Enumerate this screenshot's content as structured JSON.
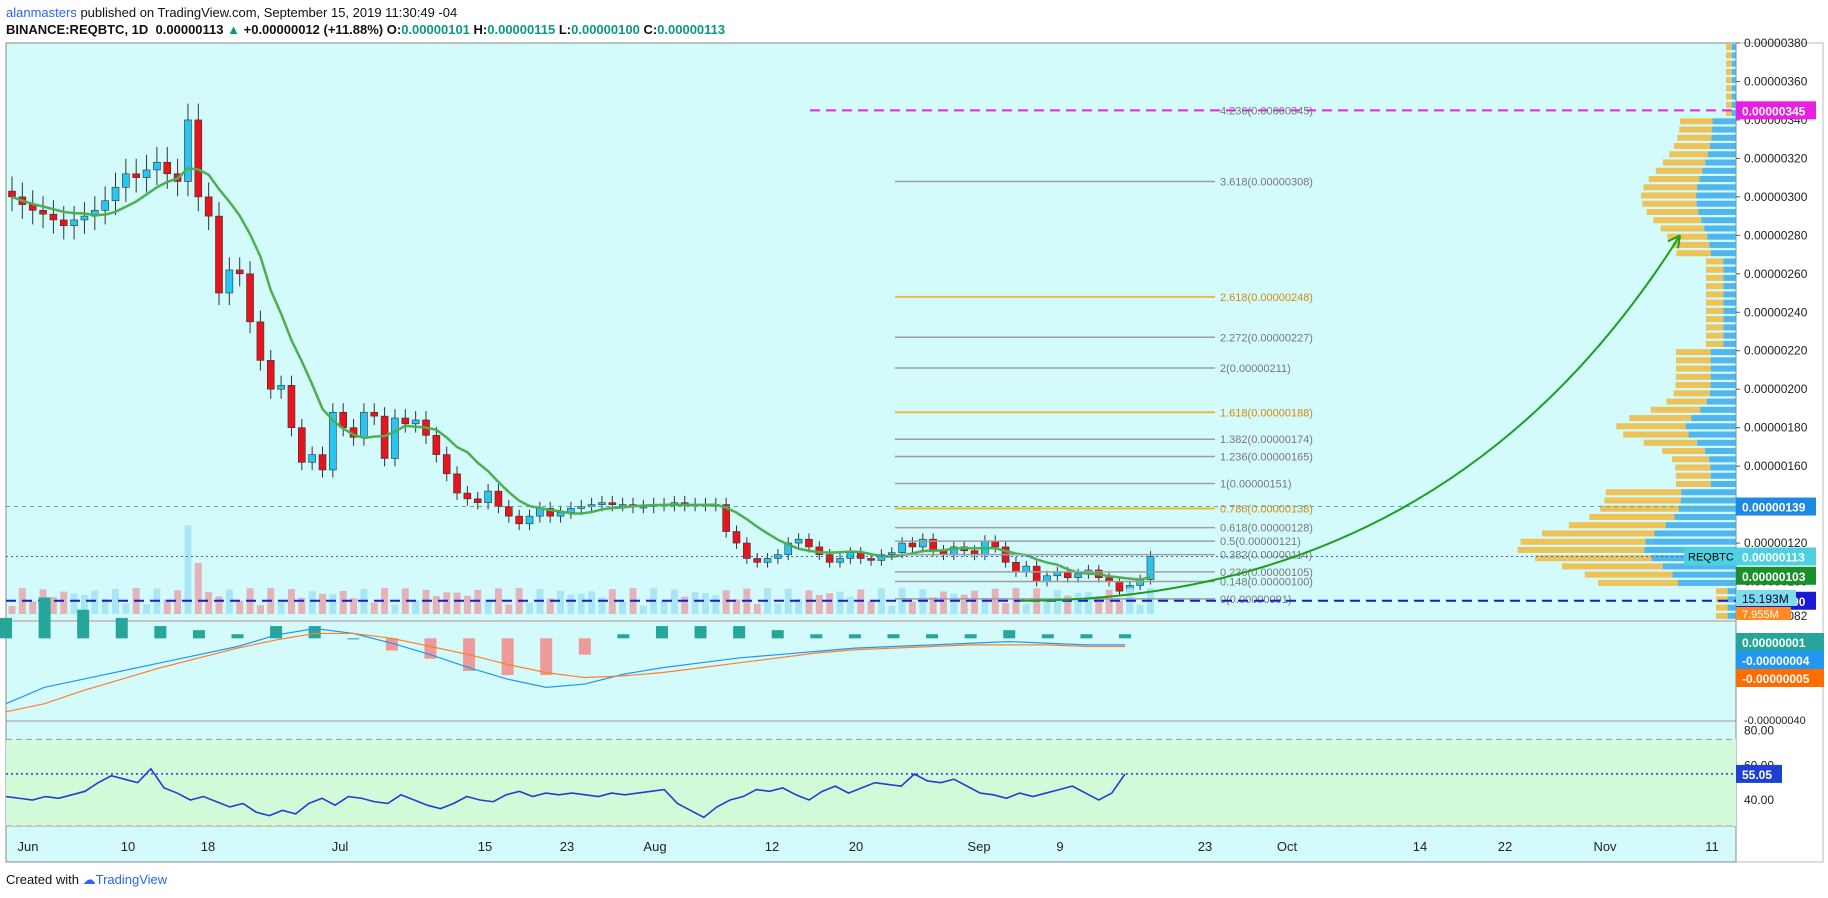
{
  "header": {
    "author": "alanmasters",
    "published": "published on TradingView.com, September 15, 2019 11:30:49 -04",
    "symbol": "BINANCE:REQBTC, 1D",
    "last": "0.00000113",
    "change": "+0.00000012 (+11.88%)",
    "o_label": "O:",
    "o": "0.00000101",
    "h_label": "H:",
    "h": "0.00000115",
    "l_label": "L:",
    "l": "0.00000100",
    "c_label": "C:",
    "c": "0.00000113"
  },
  "footer": {
    "prefix": "Created with",
    "brand": "TradingView"
  },
  "colors": {
    "background": "#d4fbfc",
    "up": "#26c6f0",
    "down": "#e8141c",
    "ma": "#4caf50",
    "fib_gray": "#9e9e9e",
    "fib_gold": "#f0b73c",
    "magenta": "#e91ee3",
    "support": "#1a1ad6",
    "arrow": "#1e9e1e",
    "macd": "#2196f3",
    "signal": "#ff7f27",
    "rsi": "#1e40d0",
    "rsi_band": "#d3fad8"
  },
  "chart_data": {
    "type": "candlestick",
    "symbol": "REQBTC",
    "timeframe": "1D",
    "price_axis": {
      "min": 8e-07,
      "max": 3.8e-06,
      "ticks": [
        "0.00000380",
        "0.00000360",
        "0.00000340",
        "0.00000320",
        "0.00000300",
        "0.00000280",
        "0.00000260",
        "0.00000240",
        "0.00000220",
        "0.00000200",
        "0.00000180",
        "0.00000160",
        "0.00000140",
        "0.00000120",
        "0.00000100",
        "0.00000082"
      ]
    },
    "x_axis": {
      "labels": [
        "Jun",
        "10",
        "18",
        "Jul",
        "15",
        "23",
        "Aug",
        "12",
        "20",
        "Sep",
        "9",
        "23",
        "Oct",
        "14",
        "22",
        "Nov",
        "11"
      ]
    },
    "close": [
      3e-06,
      2.96e-06,
      2.93e-06,
      2.91e-06,
      2.88e-06,
      2.85e-06,
      2.88e-06,
      2.9e-06,
      2.93e-06,
      2.98e-06,
      3.05e-06,
      3.12e-06,
      3.1e-06,
      3.14e-06,
      3.18e-06,
      3.12e-06,
      3.08e-06,
      3.4e-06,
      3e-06,
      2.9e-06,
      2.5e-06,
      2.62e-06,
      2.6e-06,
      2.35e-06,
      2.15e-06,
      2e-06,
      2.02e-06,
      1.8e-06,
      1.62e-06,
      1.66e-06,
      1.58e-06,
      1.88e-06,
      1.8e-06,
      1.75e-06,
      1.88e-06,
      1.86e-06,
      1.64e-06,
      1.85e-06,
      1.82e-06,
      1.84e-06,
      1.76e-06,
      1.66e-06,
      1.56e-06,
      1.46e-06,
      1.43e-06,
      1.41e-06,
      1.47e-06,
      1.39e-06,
      1.34e-06,
      1.3e-06,
      1.34e-06,
      1.38e-06,
      1.34e-06,
      1.36e-06,
      1.38e-06,
      1.39e-06,
      1.4e-06,
      1.41e-06,
      1.4e-06,
      1.4e-06,
      1.39e-06,
      1.39e-06,
      1.4e-06,
      1.4e-06,
      1.41e-06,
      1.4e-06,
      1.4e-06,
      1.4e-06,
      1.4e-06,
      1.26e-06,
      1.2e-06,
      1.12e-06,
      1.1e-06,
      1.12e-06,
      1.14e-06,
      1.2e-06,
      1.22e-06,
      1.18e-06,
      1.14e-06,
      1.1e-06,
      1.12e-06,
      1.15e-06,
      1.12e-06,
      1.11e-06,
      1.14e-06,
      1.15e-06,
      1.2e-06,
      1.18e-06,
      1.22e-06,
      1.16e-06,
      1.14e-06,
      1.18e-06,
      1.16e-06,
      1.14e-06,
      1.21e-06,
      1.18e-06,
      1.1e-06,
      1.05e-06,
      1.08e-06,
      1e-06,
      1.03e-06,
      1.05e-06,
      1.02e-06,
      1.04e-06,
      1.06e-06,
      1.02e-06,
      1e-06,
      9.5e-07,
      9.8e-07,
      1.01e-06,
      1.13e-06
    ],
    "ma_line": "green moving average",
    "fibonacci": [
      {
        "label": "4.236(0.00000345)",
        "value": 3.45e-06
      },
      {
        "label": "3.618(0.00000308)",
        "value": 3.08e-06
      },
      {
        "label": "2.618(0.00000248)",
        "value": 2.48e-06
      },
      {
        "label": "2.272(0.00000227)",
        "value": 2.27e-06
      },
      {
        "label": "2(0.00000211)",
        "value": 2.11e-06
      },
      {
        "label": "1.618(0.00000188)",
        "value": 1.88e-06
      },
      {
        "label": "1.382(0.00000174)",
        "value": 1.74e-06
      },
      {
        "label": "1.236(0.00000165)",
        "value": 1.65e-06
      },
      {
        "label": "1(0.00000151)",
        "value": 1.51e-06
      },
      {
        "label": "0.786(0.00000138)",
        "value": 1.38e-06
      },
      {
        "label": "0.618(0.00000128)",
        "value": 1.28e-06
      },
      {
        "label": "0.5(0.00000121)",
        "value": 1.21e-06
      },
      {
        "label": "0.382(0.00000114)",
        "value": 1.14e-06
      },
      {
        "label": "0.236(0.00000105)",
        "value": 1.05e-06
      },
      {
        "label": "0.148(0.00000100)",
        "value": 1e-06
      },
      {
        "label": "0(0.00000091)",
        "value": 9.1e-07
      }
    ],
    "price_labels": [
      {
        "text": "0.00000345",
        "value": 3.45e-06,
        "color": "#e91ee3"
      },
      {
        "text": "0.00000139",
        "value": 1.39e-06,
        "color": "#1e88e5"
      },
      {
        "text": "0.00000113",
        "value": 1.13e-06,
        "color": "#4dd0e1",
        "name": "REQBTC"
      },
      {
        "text": "0.00000103",
        "value": 1.03e-06,
        "color": "#1b8f2b"
      },
      {
        "text": "0.00000090",
        "value": 9e-07,
        "color": "#1a1ad6"
      }
    ],
    "volume_labels": [
      "15.193M",
      "7.955M"
    ],
    "macd": {
      "labels": [
        "0.00000001",
        "-0.00000004",
        "-0.00000005"
      ],
      "axis_tick": "-0.00000040",
      "macd_line": [
        -4e-07,
        -3e-07,
        -2.5e-07,
        -2e-07,
        -1.5e-07,
        -1e-07,
        -5e-08,
        2e-08,
        6e-08,
        3e-08,
        -3e-08,
        -1e-07,
        -1.8e-07,
        -2.5e-07,
        -3e-07,
        -2.8e-07,
        -2.2e-07,
        -1.8e-07,
        -1.5e-07,
        -1.2e-07,
        -1e-07,
        -8e-08,
        -6e-08,
        -5e-08,
        -4e-08,
        -3e-08,
        -2e-08,
        -3e-08,
        -4e-08,
        -4e-08
      ],
      "signal_line": [
        -4.5e-07,
        -4e-07,
        -3.2e-07,
        -2.5e-07,
        -1.8e-07,
        -1.2e-07,
        -6e-08,
        -1e-08,
        3e-08,
        3e-08,
        0.0,
        -5e-08,
        -1e-07,
        -1.6e-07,
        -2.1e-07,
        -2.4e-07,
        -2.3e-07,
        -2.1e-07,
        -1.8e-07,
        -1.5e-07,
        -1.2e-07,
        -9e-08,
        -7e-08,
        -6e-08,
        -5e-08,
        -4e-08,
        -4e-08,
        -4e-08,
        -5e-08,
        -5e-08
      ]
    },
    "rsi": {
      "ticks": [
        "80.00",
        "60.00",
        "40.00"
      ],
      "current": "55.05",
      "values": [
        42,
        41,
        40,
        42,
        41,
        43,
        45,
        50,
        54,
        52,
        50,
        58,
        47,
        44,
        40,
        42,
        39,
        36,
        38,
        33,
        31,
        34,
        32,
        38,
        41,
        37,
        42,
        41,
        39,
        38,
        43,
        40,
        37,
        35,
        38,
        42,
        40,
        39,
        43,
        45,
        42,
        44,
        43,
        44,
        43,
        42,
        44,
        43,
        44,
        45,
        46,
        38,
        34,
        30,
        36,
        40,
        42,
        46,
        45,
        47,
        43,
        40,
        45,
        48,
        44,
        47,
        50,
        49,
        48,
        55,
        51,
        50,
        52,
        48,
        44,
        43,
        41,
        44,
        42,
        44,
        46,
        48,
        44,
        40,
        44,
        55
      ]
    }
  }
}
